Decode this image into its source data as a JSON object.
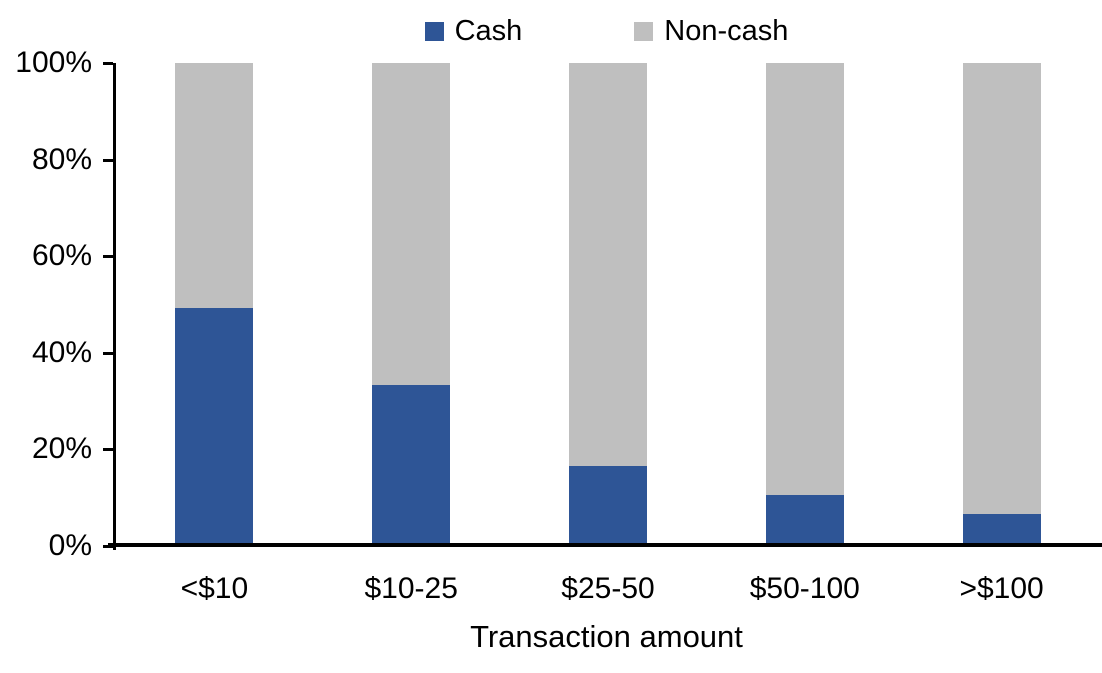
{
  "chart_data": {
    "type": "bar",
    "variant": "100%-stacked-column",
    "title": "",
    "xlabel": "Transaction amount",
    "ylabel": "",
    "categories": [
      "<$10",
      "$10-25",
      "$25-50",
      "$50-100",
      ">$100"
    ],
    "series": [
      {
        "name": "Cash",
        "color": "#2E5596",
        "values": [
          49,
          33,
          16,
          10,
          6
        ]
      },
      {
        "name": "Non-cash",
        "color": "#BFBFBF",
        "values": [
          51,
          67,
          84,
          90,
          94
        ]
      }
    ],
    "y_ticks": [
      {
        "label": "0%",
        "value": 0
      },
      {
        "label": "20%",
        "value": 20
      },
      {
        "label": "40%",
        "value": 40
      },
      {
        "label": "60%",
        "value": 60
      },
      {
        "label": "80%",
        "value": 80
      },
      {
        "label": "100%",
        "value": 100
      }
    ],
    "ylim": [
      0,
      100
    ],
    "legend_position": "top",
    "grid": false
  },
  "colors": {
    "cash": "#2E5596",
    "non_cash": "#BFBFBF",
    "axis": "#000000",
    "text": "#000000",
    "background": "#FFFFFF"
  }
}
